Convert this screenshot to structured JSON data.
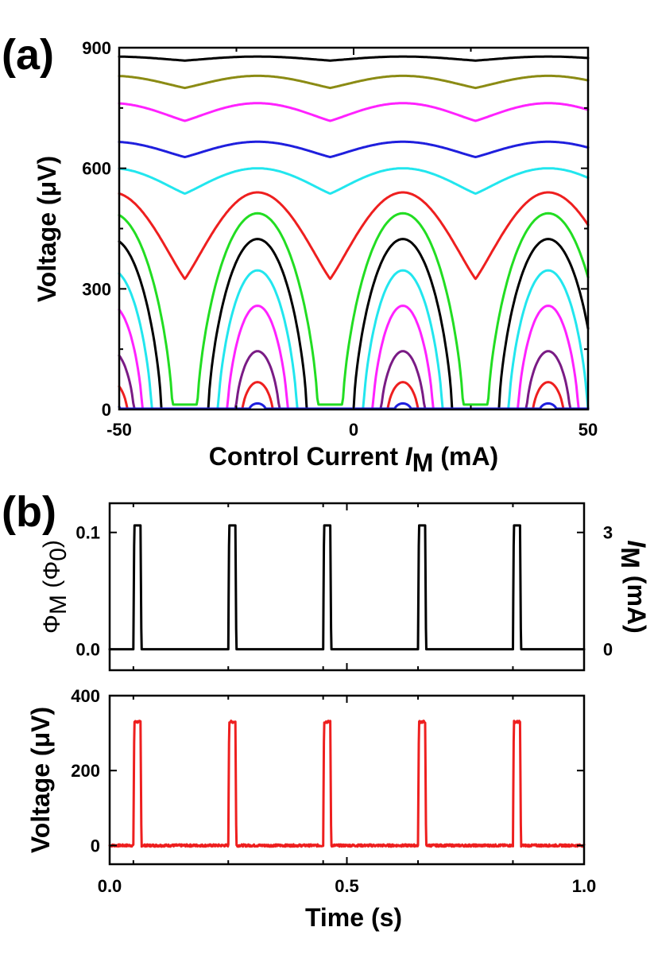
{
  "chart_data": [
    {
      "id": "a",
      "type": "line",
      "panel_label": "(a)",
      "xlabel": {
        "prefix": "Control Current ",
        "var": "I",
        "sub": "M",
        "unit": " (mA)"
      },
      "ylabel": {
        "text": "Voltage ",
        "unit": "(μV)"
      },
      "xlim": [
        -50,
        50
      ],
      "ylim": [
        0,
        900
      ],
      "xticks": [
        -50,
        0,
        50
      ],
      "xtick_labels": [
        "-50",
        "0",
        "50"
      ],
      "yticks": [
        0,
        300,
        600,
        900
      ],
      "ytick_labels": [
        "0",
        "300",
        "600",
        "900"
      ],
      "period_mA": 31,
      "peak_center_mA": 10.5,
      "series": [
        {
          "name": "curve-1",
          "color": "#000000",
          "type": "wave",
          "peak": 878,
          "valley": 868
        },
        {
          "name": "curve-2",
          "color": "#8b8b14",
          "type": "wave",
          "peak": 830,
          "valley": 800
        },
        {
          "name": "curve-3",
          "color": "#ff22ff",
          "type": "wave",
          "peak": 762,
          "valley": 718
        },
        {
          "name": "curve-4",
          "color": "#1f1fdd",
          "type": "wave",
          "peak": 666,
          "valley": 628
        },
        {
          "name": "curve-5",
          "color": "#22e6ee",
          "type": "wave",
          "peak": 600,
          "valley": 537
        },
        {
          "name": "curve-6",
          "color": "#ee1f1f",
          "type": "wave",
          "peak": 540,
          "valley": 325
        },
        {
          "name": "curve-7",
          "color": "#22dd22",
          "type": "bump",
          "peak": 488,
          "valley": 12,
          "halfwidth": 12.8
        },
        {
          "name": "curve-8",
          "color": "#000000",
          "type": "bump",
          "peak": 424,
          "valley": 0,
          "halfwidth": 10.5
        },
        {
          "name": "curve-9",
          "color": "#22e6ee",
          "type": "bump",
          "peak": 346,
          "valley": 0,
          "halfwidth": 8.4
        },
        {
          "name": "curve-10",
          "color": "#ff22ff",
          "type": "bump",
          "peak": 258,
          "valley": 0,
          "halfwidth": 6.4
        },
        {
          "name": "curve-11",
          "color": "#7a1b85",
          "type": "bump",
          "peak": 145,
          "valley": 0,
          "halfwidth": 4.6
        },
        {
          "name": "curve-12",
          "color": "#ee1f1f",
          "type": "bump",
          "peak": 68,
          "valley": 0,
          "halfwidth": 3.2
        },
        {
          "name": "curve-13",
          "color": "#1f1fdd",
          "type": "bump",
          "peak": 15,
          "valley": 0,
          "halfwidth": 1.8
        }
      ]
    },
    {
      "id": "b-top",
      "type": "line",
      "panel_label": "(b)",
      "ylabel": {
        "sym": "Φ",
        "sub": "M",
        "mid": " (Φ",
        "sub2": "0",
        "end": ")"
      },
      "ylabel_right": {
        "var": "I",
        "sub": "M",
        "unit": " (mA)"
      },
      "xlim": [
        0,
        1
      ],
      "ylim": [
        -0.018,
        0.125
      ],
      "yticks": [
        0.0,
        0.1
      ],
      "ytick_labels": [
        "0.0",
        "0.1"
      ],
      "right_tick_labels": [
        "0",
        "3"
      ],
      "xticks": [
        0.0,
        0.5,
        1.0
      ],
      "pulse_starts": [
        0.05,
        0.25,
        0.45,
        0.65,
        0.85
      ],
      "pulse_width": 0.017,
      "baseline": 0.0,
      "high": 0.106,
      "series": [
        {
          "name": "flux",
          "color": "#000000"
        }
      ]
    },
    {
      "id": "b-bottom",
      "type": "line",
      "ylabel": {
        "text": "Voltage ",
        "unit": "(μV)"
      },
      "xlabel": {
        "text": "Time (s)"
      },
      "xlim": [
        0,
        1
      ],
      "ylim": [
        -50,
        400
      ],
      "yticks": [
        0,
        200,
        400
      ],
      "ytick_labels": [
        "0",
        "200",
        "400"
      ],
      "xticks": [
        0.0,
        0.5,
        1.0
      ],
      "xtick_labels": [
        "0.0",
        "0.5",
        "1.0"
      ],
      "pulse_starts": [
        0.05,
        0.25,
        0.45,
        0.65,
        0.85
      ],
      "pulse_width": 0.017,
      "baseline": 0,
      "high": 330,
      "series": [
        {
          "name": "voltage",
          "color": "#ee1f1f"
        }
      ]
    }
  ]
}
